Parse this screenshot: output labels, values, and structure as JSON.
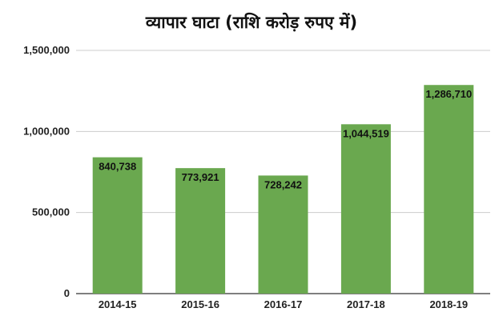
{
  "chart_data": {
    "type": "bar",
    "title": "व्यापार घाटा (राशि  करोड़ रुपए में)",
    "categories": [
      "2014-15",
      "2015-16",
      "2016-17",
      "2017-18",
      "2018-19"
    ],
    "values": [
      840738,
      773921,
      728242,
      1044519,
      1286710
    ],
    "value_labels": [
      "840,738",
      "773,921",
      "728,242",
      "1,044,519",
      "1,286,710"
    ],
    "y_ticks": [
      0,
      500000,
      1000000,
      1500000
    ],
    "y_tick_labels": [
      "0",
      "500,000",
      "1,000,000",
      "1,500,000"
    ],
    "ylim": [
      0,
      1500000
    ],
    "xlabel": "",
    "ylabel": "",
    "grid": true,
    "legend": "none",
    "bar_color": "#6aa84f",
    "grid_color": "#cccccc",
    "axis_color": "#333333"
  }
}
